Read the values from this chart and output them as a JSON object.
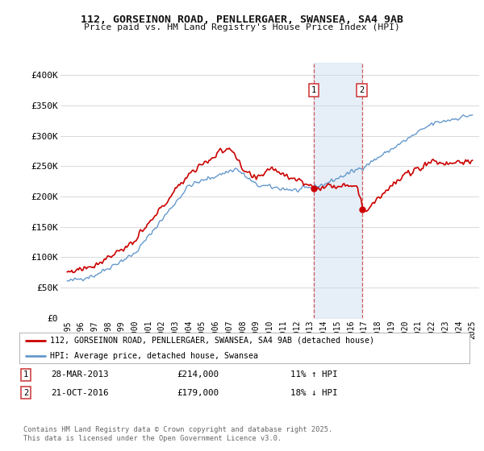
{
  "title_line1": "112, GORSEINON ROAD, PENLLERGAER, SWANSEA, SA4 9AB",
  "title_line2": "Price paid vs. HM Land Registry's House Price Index (HPI)",
  "background_color": "#ffffff",
  "plot_bg_color": "#ffffff",
  "grid_color": "#d8d8d8",
  "red_line_color": "#cc0000",
  "blue_line_color": "#6699cc",
  "blue_fill_color": "#ddeeff",
  "annotation1": {
    "label": "1",
    "date_num": 2013.24,
    "price": 214000,
    "text": "28-MAR-2013",
    "price_text": "£214,000",
    "hpi_text": "11% ↑ HPI"
  },
  "annotation2": {
    "label": "2",
    "date_num": 2016.81,
    "price": 179000,
    "text": "21-OCT-2016",
    "price_text": "£179,000",
    "hpi_text": "18% ↓ HPI"
  },
  "legend_red": "112, GORSEINON ROAD, PENLLERGAER, SWANSEA, SA4 9AB (detached house)",
  "legend_blue": "HPI: Average price, detached house, Swansea",
  "footer": "Contains HM Land Registry data © Crown copyright and database right 2025.\nThis data is licensed under the Open Government Licence v3.0.",
  "ylim": [
    0,
    420000
  ],
  "xlim": [
    1994.5,
    2025.5
  ],
  "yticks": [
    0,
    50000,
    100000,
    150000,
    200000,
    250000,
    300000,
    350000,
    400000
  ],
  "ytick_labels": [
    "£0",
    "£50K",
    "£100K",
    "£150K",
    "£200K",
    "£250K",
    "£300K",
    "£350K",
    "£400K"
  ],
  "xticks": [
    1995,
    1996,
    1997,
    1998,
    1999,
    2000,
    2001,
    2002,
    2003,
    2004,
    2005,
    2006,
    2007,
    2008,
    2009,
    2010,
    2011,
    2012,
    2013,
    2014,
    2015,
    2016,
    2017,
    2018,
    2019,
    2020,
    2021,
    2022,
    2023,
    2024,
    2025
  ]
}
